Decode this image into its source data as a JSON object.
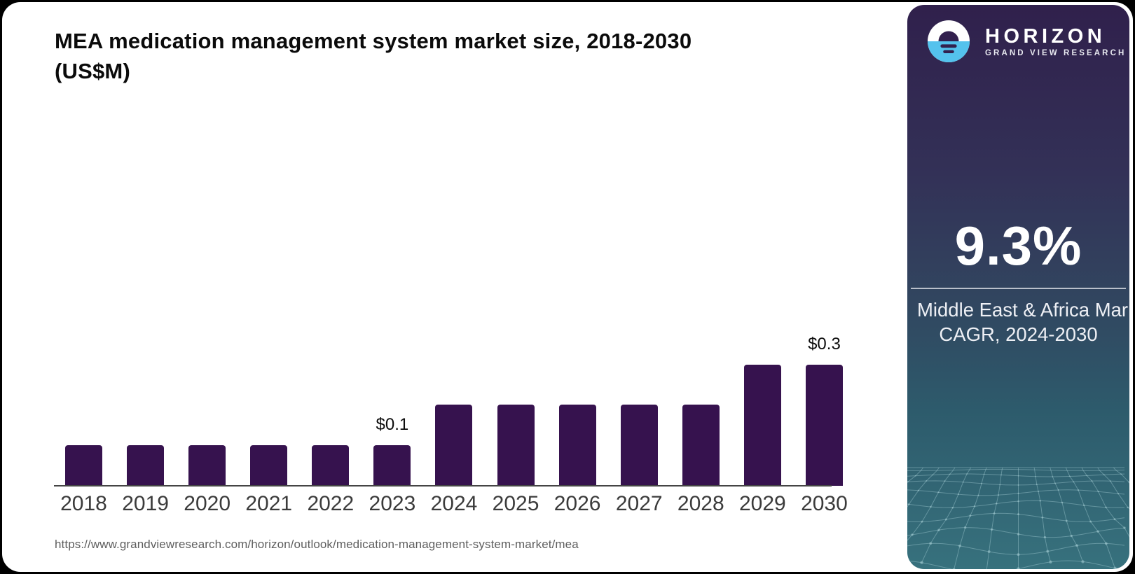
{
  "title": {
    "line1": "MEA medication management system market size, 2018-2030",
    "line2": "(US$M)"
  },
  "source_url": "https://www.grandviewresearch.com/horizon/outlook/medication-management-system-market/mea",
  "chart_data": {
    "type": "bar",
    "title": "MEA medication management system market size, 2018-2030 (US$M)",
    "unit": "US$M",
    "categories": [
      "2018",
      "2019",
      "2020",
      "2021",
      "2022",
      "2023",
      "2024",
      "2025",
      "2026",
      "2027",
      "2028",
      "2029",
      "2030"
    ],
    "values": [
      0.1,
      0.1,
      0.1,
      0.1,
      0.1,
      0.1,
      0.2,
      0.2,
      0.2,
      0.2,
      0.2,
      0.3,
      0.3
    ],
    "data_labels": [
      {
        "category": "2023",
        "text": "$0.1"
      },
      {
        "category": "2030",
        "text": "$0.3"
      }
    ],
    "ylim": [
      0,
      0.33
    ],
    "grid": false,
    "legend": false,
    "bar_color": "#36124E",
    "axis_color": "#454545",
    "tick_label_color": "#3B3B3B"
  },
  "sidebar": {
    "brand": {
      "name": "HORIZON",
      "subtitle": "GRAND VIEW RESEARCH",
      "logo_icon": "horizon-sunset-logo",
      "logo_blue": "#54C2ED",
      "logo_dark": "#32204E"
    },
    "stat": {
      "value": "9.3%",
      "label_line1": "Middle East & Africa Market",
      "label_line2": "CAGR, 2024-2030"
    },
    "gradient": [
      "#30204C",
      "#333157",
      "#31455F",
      "#2D5B6C",
      "#37717D"
    ],
    "mesh_line_color": "#A7CFD6"
  }
}
